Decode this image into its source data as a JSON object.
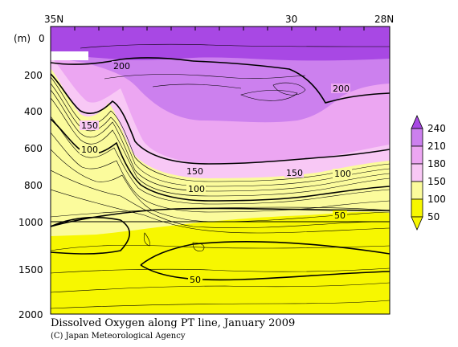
{
  "chart_data": {
    "type": "contour",
    "title": "Dissolved Oxygen along PT line, January 2009",
    "credit": "(C) Japan Meteorological Agency",
    "x_ticks_top": [
      "35N",
      "30",
      "28N"
    ],
    "y_unit": "(m)",
    "y_ticks": [
      "0",
      "200",
      "400",
      "600",
      "800",
      "1000",
      "1500",
      "2000"
    ],
    "y_axis_break": "1000 m (scale changes below)",
    "colorbar": {
      "levels": [
        "50",
        "100",
        "150",
        "180",
        "210",
        "240"
      ],
      "colors": [
        "#f7f700",
        "#fbfb9c",
        "#f8c8f5",
        "#eca6f2",
        "#cc80ee",
        "#a848e4"
      ]
    },
    "contour_labels": [
      "200",
      "200",
      "150",
      "100",
      "150",
      "150",
      "100",
      "100",
      "50",
      "50"
    ]
  }
}
